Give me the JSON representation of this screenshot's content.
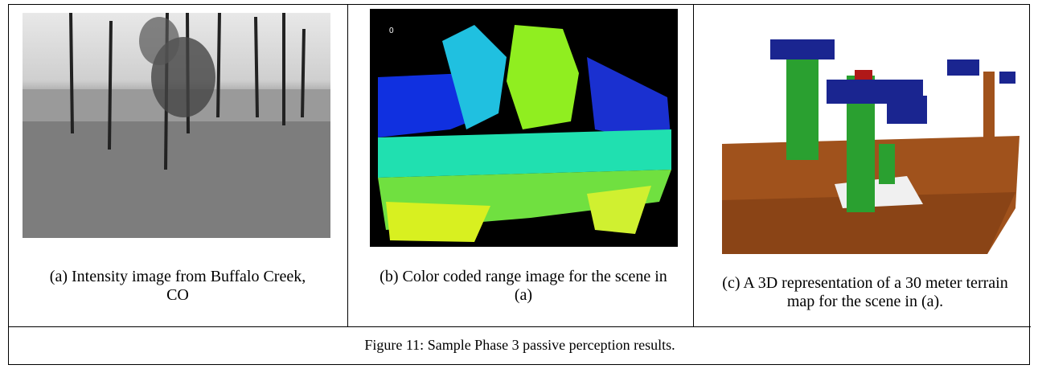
{
  "panels": [
    {
      "caption": "(a) Intensity image from Buffalo Creek, CO"
    },
    {
      "caption": "(b) Color coded range image for the scene in (a)",
      "image_label": "0"
    },
    {
      "caption": "(c) A 3D representation of a 30 meter terrain map for the scene in (a)."
    }
  ],
  "figure_caption": "Figure 11:  Sample Phase 3 passive perception results."
}
